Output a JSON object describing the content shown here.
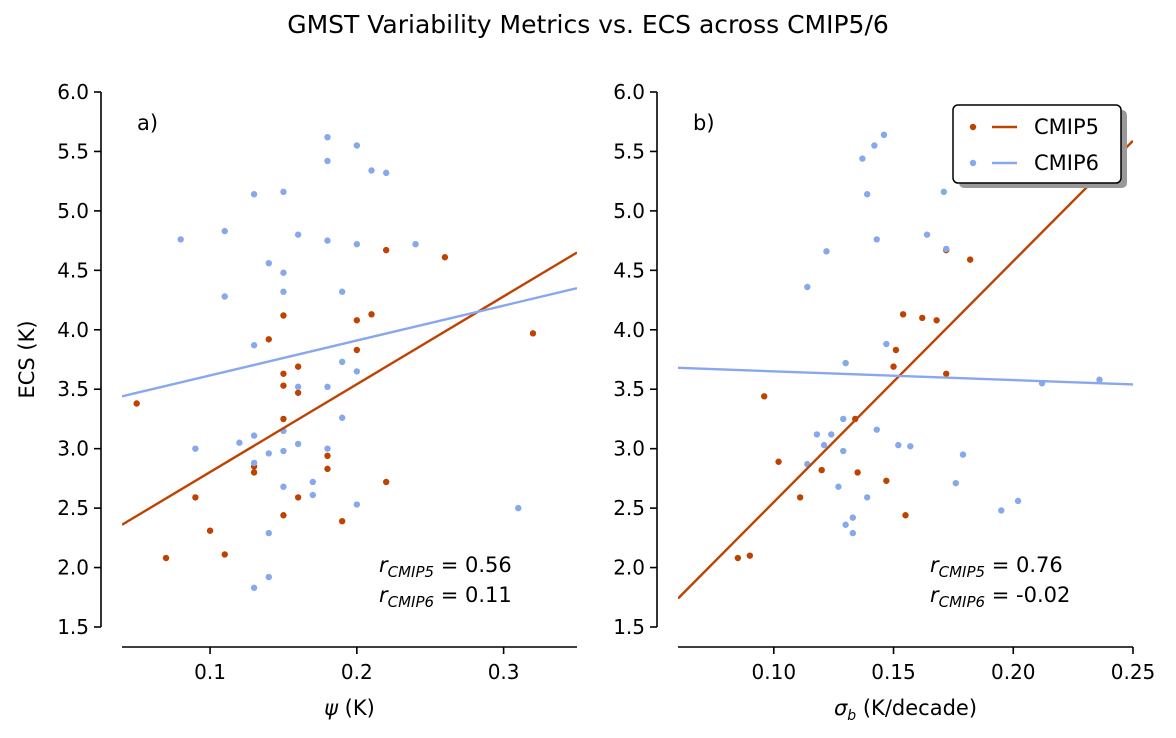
{
  "figure": {
    "title": "GMST Variability Metrics vs. ECS across CMIP5/6"
  },
  "colors": {
    "CMIP5": "#BF4300",
    "CMIP6": "#87A8EC"
  },
  "legend": {
    "position": "top-right",
    "entries": [
      "CMIP5",
      "CMIP6"
    ]
  },
  "chart_data": [
    {
      "type": "scatter",
      "panel_tag": "a)",
      "xlabel": "ψ (K)",
      "ylabel": "ECS (K)",
      "xlim": [
        0.04,
        0.35
      ],
      "ylim": [
        1.5,
        6.0
      ],
      "xticks": [
        0.1,
        0.2,
        0.3
      ],
      "xtick_labels": [
        "0.1",
        "0.2",
        "0.3"
      ],
      "yticks": [
        1.5,
        2.0,
        2.5,
        3.0,
        3.5,
        4.0,
        4.5,
        5.0,
        5.5,
        6.0
      ],
      "ytick_labels": [
        "1.5",
        "2.0",
        "2.5",
        "3.0",
        "3.5",
        "4.0",
        "4.5",
        "5.0",
        "5.5",
        "6.0"
      ],
      "correlations": [
        {
          "label_base": "r",
          "label_sub": "CMIP5",
          "text": " = 0.56"
        },
        {
          "label_base": "r",
          "label_sub": "CMIP6",
          "text": " = 0.11"
        }
      ],
      "series": [
        {
          "name": "CMIP5",
          "points": [
            [
              0.05,
              3.38
            ],
            [
              0.07,
              2.08
            ],
            [
              0.09,
              2.59
            ],
            [
              0.1,
              2.31
            ],
            [
              0.11,
              2.11
            ],
            [
              0.13,
              2.85
            ],
            [
              0.13,
              2.8
            ],
            [
              0.14,
              3.92
            ],
            [
              0.15,
              4.12
            ],
            [
              0.15,
              3.63
            ],
            [
              0.15,
              3.53
            ],
            [
              0.15,
              3.25
            ],
            [
              0.15,
              2.44
            ],
            [
              0.16,
              3.69
            ],
            [
              0.16,
              3.47
            ],
            [
              0.16,
              2.59
            ],
            [
              0.18,
              2.94
            ],
            [
              0.18,
              2.83
            ],
            [
              0.19,
              2.39
            ],
            [
              0.2,
              4.08
            ],
            [
              0.2,
              3.83
            ],
            [
              0.21,
              4.13
            ],
            [
              0.22,
              4.67
            ],
            [
              0.22,
              2.72
            ],
            [
              0.26,
              4.61
            ],
            [
              0.32,
              3.97
            ]
          ],
          "fit_line": [
            [
              0.04,
              2.36
            ],
            [
              0.35,
              4.65
            ]
          ]
        },
        {
          "name": "CMIP6",
          "points": [
            [
              0.08,
              4.76
            ],
            [
              0.09,
              3.0
            ],
            [
              0.11,
              4.83
            ],
            [
              0.11,
              4.28
            ],
            [
              0.12,
              3.05
            ],
            [
              0.13,
              5.14
            ],
            [
              0.13,
              3.87
            ],
            [
              0.13,
              3.11
            ],
            [
              0.13,
              2.88
            ],
            [
              0.13,
              1.83
            ],
            [
              0.14,
              4.56
            ],
            [
              0.14,
              2.96
            ],
            [
              0.14,
              2.29
            ],
            [
              0.14,
              1.92
            ],
            [
              0.15,
              5.16
            ],
            [
              0.15,
              4.48
            ],
            [
              0.15,
              4.32
            ],
            [
              0.15,
              3.15
            ],
            [
              0.15,
              2.98
            ],
            [
              0.15,
              2.68
            ],
            [
              0.16,
              4.8
            ],
            [
              0.16,
              3.52
            ],
            [
              0.16,
              3.04
            ],
            [
              0.17,
              2.72
            ],
            [
              0.17,
              2.61
            ],
            [
              0.18,
              5.62
            ],
            [
              0.18,
              5.42
            ],
            [
              0.18,
              4.75
            ],
            [
              0.18,
              3.52
            ],
            [
              0.18,
              3.0
            ],
            [
              0.19,
              4.32
            ],
            [
              0.19,
              3.73
            ],
            [
              0.19,
              3.26
            ],
            [
              0.2,
              5.55
            ],
            [
              0.2,
              4.72
            ],
            [
              0.2,
              3.65
            ],
            [
              0.2,
              2.53
            ],
            [
              0.21,
              5.34
            ],
            [
              0.22,
              5.32
            ],
            [
              0.24,
              4.72
            ],
            [
              0.31,
              2.5
            ]
          ],
          "fit_line": [
            [
              0.04,
              3.44
            ],
            [
              0.35,
              4.35
            ]
          ]
        }
      ]
    },
    {
      "type": "scatter",
      "panel_tag": "b)",
      "xlabel": "σb (K/decade)",
      "ylabel": "",
      "xlim": [
        0.06,
        0.25
      ],
      "ylim": [
        1.5,
        6.0
      ],
      "xticks": [
        0.1,
        0.15,
        0.2,
        0.25
      ],
      "xtick_labels": [
        "0.10",
        "0.15",
        "0.20",
        "0.25"
      ],
      "yticks": [
        1.5,
        2.0,
        2.5,
        3.0,
        3.5,
        4.0,
        4.5,
        5.0,
        5.5,
        6.0
      ],
      "ytick_labels": [
        "1.5",
        "2.0",
        "2.5",
        "3.0",
        "3.5",
        "4.0",
        "4.5",
        "5.0",
        "5.5",
        "6.0"
      ],
      "correlations": [
        {
          "label_base": "r",
          "label_sub": "CMIP5",
          "text": " = 0.76"
        },
        {
          "label_base": "r",
          "label_sub": "CMIP6",
          "text": " = -0.02"
        }
      ],
      "series": [
        {
          "name": "CMIP5",
          "points": [
            [
              0.085,
              2.08
            ],
            [
              0.09,
              2.1
            ],
            [
              0.096,
              3.44
            ],
            [
              0.102,
              2.89
            ],
            [
              0.111,
              2.59
            ],
            [
              0.12,
              2.82
            ],
            [
              0.134,
              3.25
            ],
            [
              0.135,
              2.8
            ],
            [
              0.147,
              2.73
            ],
            [
              0.15,
              3.69
            ],
            [
              0.151,
              3.83
            ],
            [
              0.154,
              4.13
            ],
            [
              0.155,
              2.44
            ],
            [
              0.162,
              4.1
            ],
            [
              0.168,
              4.08
            ],
            [
              0.172,
              3.63
            ],
            [
              0.172,
              4.67
            ],
            [
              0.182,
              4.59
            ]
          ],
          "fit_line": [
            [
              0.06,
              1.74
            ],
            [
              0.25,
              5.59
            ]
          ]
        },
        {
          "name": "CMIP6",
          "points": [
            [
              0.114,
              4.36
            ],
            [
              0.114,
              2.87
            ],
            [
              0.118,
              3.12
            ],
            [
              0.121,
              3.03
            ],
            [
              0.122,
              4.66
            ],
            [
              0.124,
              3.12
            ],
            [
              0.127,
              2.68
            ],
            [
              0.129,
              3.25
            ],
            [
              0.129,
              2.98
            ],
            [
              0.13,
              3.72
            ],
            [
              0.13,
              2.36
            ],
            [
              0.133,
              2.29
            ],
            [
              0.133,
              2.42
            ],
            [
              0.137,
              5.44
            ],
            [
              0.139,
              5.14
            ],
            [
              0.139,
              2.59
            ],
            [
              0.142,
              5.55
            ],
            [
              0.143,
              4.76
            ],
            [
              0.143,
              3.16
            ],
            [
              0.146,
              5.64
            ],
            [
              0.147,
              3.88
            ],
            [
              0.152,
              3.03
            ],
            [
              0.157,
              3.02
            ],
            [
              0.164,
              4.8
            ],
            [
              0.171,
              5.16
            ],
            [
              0.172,
              4.68
            ],
            [
              0.176,
              2.71
            ],
            [
              0.179,
              2.95
            ],
            [
              0.195,
              2.48
            ],
            [
              0.202,
              2.56
            ],
            [
              0.212,
              3.55
            ],
            [
              0.236,
              3.58
            ]
          ],
          "fit_line": [
            [
              0.06,
              3.68
            ],
            [
              0.25,
              3.54
            ]
          ]
        }
      ]
    }
  ]
}
